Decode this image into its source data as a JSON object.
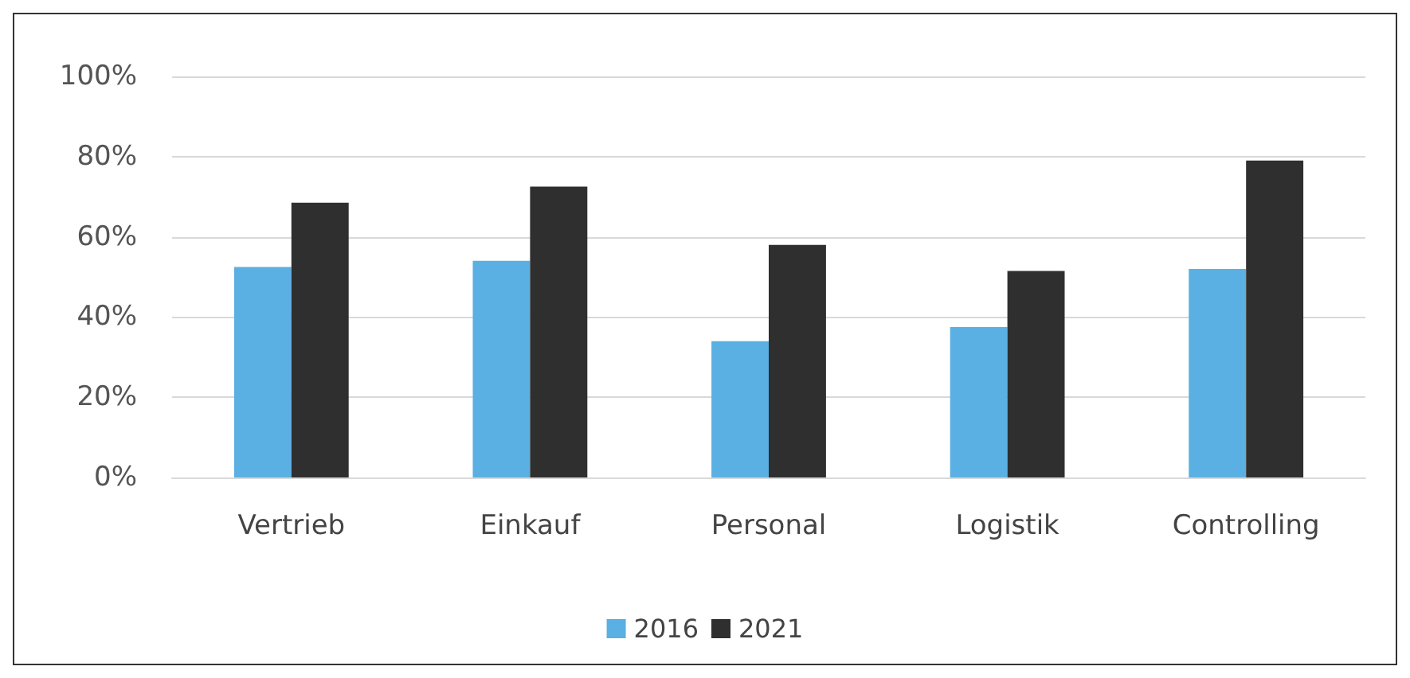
{
  "chart_data": {
    "type": "bar",
    "categories": [
      "Vertrieb",
      "Einkauf",
      "Personal",
      "Logistik",
      "Controlling"
    ],
    "series": [
      {
        "name": "2016",
        "color": "#5aafe3",
        "values": [
          52.5,
          54,
          34,
          37.5,
          52
        ]
      },
      {
        "name": "2021",
        "color": "#2f2f2f",
        "values": [
          68.5,
          72.5,
          58,
          51.5,
          79
        ]
      }
    ],
    "ylim": [
      0,
      100
    ],
    "yticks": [
      {
        "value": 0,
        "label": "0%"
      },
      {
        "value": 20,
        "label": "20%"
      },
      {
        "value": 40,
        "label": "40%"
      },
      {
        "value": 60,
        "label": "60%"
      },
      {
        "value": 80,
        "label": "80%"
      },
      {
        "value": 100,
        "label": "100%"
      }
    ],
    "grid": "y",
    "legend": "bottom"
  }
}
